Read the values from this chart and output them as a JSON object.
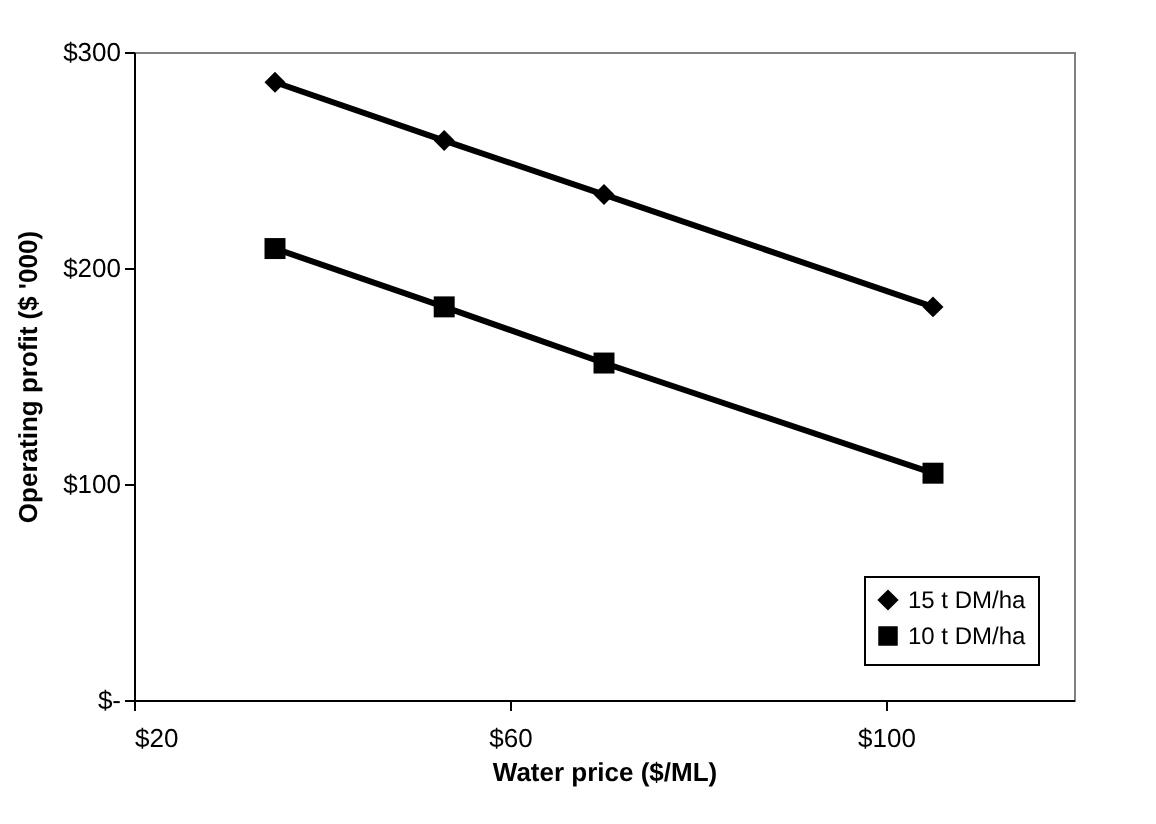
{
  "chart_data": {
    "type": "line",
    "xlabel": "Water price ($/ML)",
    "ylabel": "Operating profit ($ '000)",
    "x": [
      35,
      53,
      70,
      105
    ],
    "series": [
      {
        "name": "15 t DM/ha",
        "color": "#000000",
        "marker": "diamond",
        "values": [
          286,
          259,
          234,
          182
        ]
      },
      {
        "name": "10 t DM/ha",
        "color": "#000000",
        "marker": "square",
        "values": [
          209,
          182,
          156,
          105
        ]
      }
    ],
    "xlim": [
      20,
      120
    ],
    "xticks": [
      {
        "value": 20,
        "label": "$20"
      },
      {
        "value": 60,
        "label": "$60"
      },
      {
        "value": 100,
        "label": "$100"
      }
    ],
    "ylim": [
      0,
      300
    ],
    "yticks": [
      {
        "value": 0,
        "label": "$-"
      },
      {
        "value": 100,
        "label": "$100"
      },
      {
        "value": 200,
        "label": "$200"
      },
      {
        "value": 300,
        "label": "$300"
      }
    ],
    "grid": false,
    "legend": "bottom right",
    "line_style": "solid"
  }
}
